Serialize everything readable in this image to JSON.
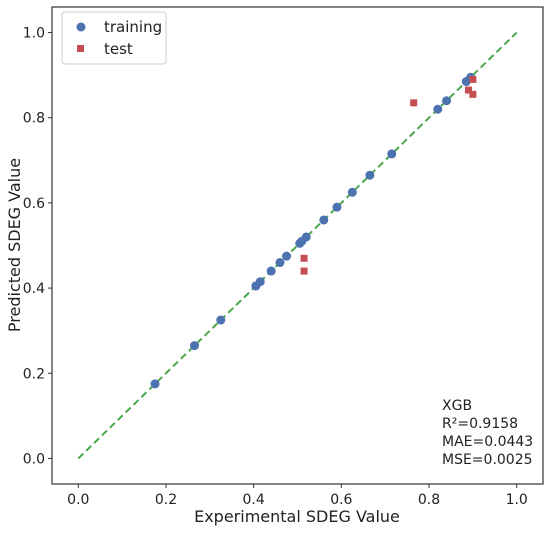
{
  "chart_data": {
    "type": "scatter",
    "title": "",
    "xlabel": "Experimental SDEG Value",
    "ylabel": "Predicted SDEG Value",
    "xlim": [
      -0.06,
      1.06
    ],
    "ylim": [
      -0.06,
      1.06
    ],
    "xticks": [
      "0.0",
      "0.2",
      "0.4",
      "0.6",
      "0.8",
      "1.0"
    ],
    "yticks": [
      "0.0",
      "0.2",
      "0.4",
      "0.6",
      "0.8",
      "1.0"
    ],
    "grid": false,
    "legend_position": "top-left",
    "reference_line": {
      "style": "dashed",
      "color": "#4ca64c",
      "from": [
        0,
        0
      ],
      "to": [
        1,
        1
      ]
    },
    "series": [
      {
        "name": "training",
        "marker": "circle",
        "color": "#4c72b0",
        "points": [
          [
            0.175,
            0.175
          ],
          [
            0.265,
            0.265
          ],
          [
            0.325,
            0.325
          ],
          [
            0.405,
            0.405
          ],
          [
            0.415,
            0.415
          ],
          [
            0.44,
            0.44
          ],
          [
            0.46,
            0.46
          ],
          [
            0.475,
            0.475
          ],
          [
            0.505,
            0.505
          ],
          [
            0.51,
            0.51
          ],
          [
            0.52,
            0.52
          ],
          [
            0.56,
            0.56
          ],
          [
            0.59,
            0.59
          ],
          [
            0.625,
            0.625
          ],
          [
            0.665,
            0.665
          ],
          [
            0.715,
            0.715
          ],
          [
            0.82,
            0.82
          ],
          [
            0.84,
            0.84
          ],
          [
            0.885,
            0.885
          ],
          [
            0.895,
            0.895
          ]
        ]
      },
      {
        "name": "test",
        "marker": "square",
        "color": "#c44e52",
        "points": [
          [
            0.515,
            0.47
          ],
          [
            0.515,
            0.44
          ],
          [
            0.765,
            0.835
          ],
          [
            0.89,
            0.865
          ],
          [
            0.9,
            0.89
          ],
          [
            0.9,
            0.855
          ]
        ]
      }
    ],
    "annotation": {
      "lines": [
        "XGB",
        "R²=0.9158",
        "MAE=0.0443",
        "MSE=0.0025"
      ]
    }
  }
}
